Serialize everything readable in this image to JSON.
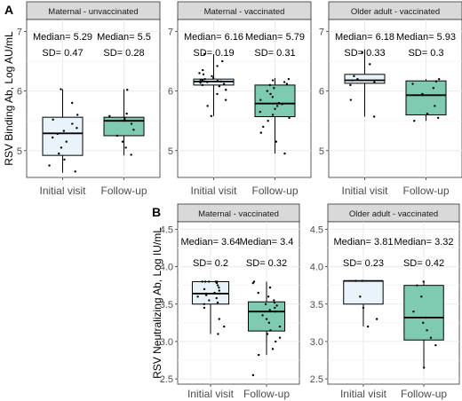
{
  "colors": {
    "initial_fill": "#e8f4fa",
    "followup_fill": "#7ecbb2",
    "strip_fill": "#d9d9d9",
    "grid": "#ebebeb",
    "text": "#333333"
  },
  "chart_data": [
    {
      "type": "box",
      "panel_label": "A",
      "ylabel": "RSV Binding Ab, Log AU/mL",
      "ylim": [
        4.55,
        7.2
      ],
      "yticks": [
        5,
        6,
        7
      ],
      "categories": [
        "Initial visit",
        "Follow-up"
      ],
      "facets": [
        {
          "title": "Maternal - unvaccinated",
          "boxes": [
            {
              "group": "Initial visit",
              "whisker_low": 4.63,
              "q1": 4.92,
              "median": 5.29,
              "q3": 5.56,
              "whisker_high": 6.03,
              "median_label": "Median= 5.29",
              "sd_label": "SD= 0.47",
              "points": [
                4.65,
                4.75,
                4.85,
                4.95,
                5.05,
                5.15,
                5.22,
                5.28,
                5.33,
                5.38,
                5.45,
                5.52,
                5.6,
                5.8,
                6.03
              ]
            },
            {
              "group": "Follow-up",
              "whisker_low": 4.92,
              "q1": 5.25,
              "median": 5.5,
              "q3": 5.56,
              "whisker_high": 6.03,
              "median_label": "Median= 5.5",
              "sd_label": "SD= 0.28",
              "points": [
                4.93,
                5.05,
                5.15,
                5.25,
                5.35,
                5.45,
                5.5,
                5.52,
                5.55,
                5.58,
                5.62,
                6.02
              ]
            }
          ]
        },
        {
          "title": "Maternal - vaccinated",
          "boxes": [
            {
              "group": "Initial visit",
              "whisker_low": 5.58,
              "q1": 6.1,
              "median": 6.16,
              "q3": 6.2,
              "whisker_high": 6.62,
              "median_label": "Median= 6.16",
              "sd_label": "SD= 0.19",
              "points": [
                5.58,
                5.75,
                5.85,
                5.95,
                6.02,
                6.08,
                6.1,
                6.12,
                6.14,
                6.15,
                6.16,
                6.17,
                6.18,
                6.19,
                6.2,
                6.22,
                6.25,
                6.28,
                6.3,
                6.35,
                6.42,
                6.5,
                6.62
              ]
            },
            {
              "group": "Follow-up",
              "whisker_low": 4.95,
              "q1": 5.57,
              "median": 5.79,
              "q3": 6.1,
              "whisker_high": 6.22,
              "median_label": "Median= 5.79",
              "sd_label": "SD= 0.31",
              "points": [
                4.95,
                5.15,
                5.3,
                5.4,
                5.5,
                5.55,
                5.6,
                5.65,
                5.7,
                5.75,
                5.78,
                5.8,
                5.85,
                5.9,
                5.95,
                6.0,
                6.05,
                6.1,
                6.12,
                6.15,
                6.18,
                6.2
              ]
            }
          ]
        },
        {
          "title": "Older adult - vaccinated",
          "boxes": [
            {
              "group": "Initial visit",
              "whisker_low": 5.57,
              "q1": 6.13,
              "median": 6.18,
              "q3": 6.28,
              "whisker_high": 6.7,
              "median_label": "Median= 6.18",
              "sd_label": "SD= 0.33",
              "points": [
                5.57,
                5.85,
                6.1,
                6.15,
                6.18,
                6.2,
                6.25,
                6.45,
                6.65
              ]
            },
            {
              "group": "Follow-up",
              "whisker_low": 5.5,
              "q1": 5.6,
              "median": 5.93,
              "q3": 6.17,
              "whisker_high": 6.2,
              "median_label": "Median= 5.93",
              "sd_label": "SD= 0.3",
              "points": [
                5.5,
                5.55,
                5.62,
                5.75,
                5.95,
                6.05,
                6.12,
                6.16,
                6.2
              ]
            }
          ]
        }
      ]
    },
    {
      "type": "box",
      "panel_label": "B",
      "ylabel": "RSV Neutralizing Ab, Log IU/mL",
      "ylim": [
        2.43,
        4.6
      ],
      "yticks": [
        2.5,
        3.0,
        3.5,
        4.0,
        4.5
      ],
      "ytick_labels": [
        "2.5",
        "3.0",
        "3.5",
        "4.0",
        "4.5"
      ],
      "categories": [
        "Initial visit",
        "Follow-up"
      ],
      "facets": [
        {
          "title": "Maternal - vaccinated",
          "boxes": [
            {
              "group": "Initial visit",
              "whisker_low": 3.1,
              "q1": 3.5,
              "median": 3.64,
              "q3": 3.8,
              "whisker_high": 3.8,
              "median_label": "Median= 3.64",
              "sd_label": "SD= 0.2",
              "points": [
                3.1,
                3.2,
                3.3,
                3.45,
                3.5,
                3.52,
                3.55,
                3.58,
                3.6,
                3.62,
                3.64,
                3.65,
                3.68,
                3.7,
                3.72,
                3.75,
                3.78,
                3.8,
                3.8,
                3.8,
                3.8,
                3.8
              ]
            },
            {
              "group": "Follow-up",
              "whisker_low": 2.82,
              "q1": 3.14,
              "median": 3.4,
              "q3": 3.53,
              "whisker_high": 3.8,
              "median_label": "Median= 3.4",
              "sd_label": "SD= 0.32",
              "points": [
                2.55,
                2.82,
                2.9,
                3.0,
                3.05,
                3.1,
                3.15,
                3.2,
                3.25,
                3.3,
                3.35,
                3.4,
                3.42,
                3.45,
                3.48,
                3.5,
                3.52,
                3.55,
                3.6,
                3.65,
                3.72,
                3.78,
                3.8
              ]
            }
          ]
        },
        {
          "title": "Older adult - vaccinated",
          "boxes": [
            {
              "group": "Initial visit",
              "whisker_low": 3.2,
              "q1": 3.5,
              "median": 3.81,
              "q3": 3.81,
              "whisker_high": 3.81,
              "median_label": "Median= 3.81",
              "sd_label": "SD= 0.23",
              "points": [
                3.2,
                3.3,
                3.45,
                3.6,
                3.81,
                3.81
              ]
            },
            {
              "group": "Follow-up",
              "whisker_low": 2.65,
              "q1": 3.02,
              "median": 3.32,
              "q3": 3.75,
              "whisker_high": 3.81,
              "median_label": "Median= 3.32",
              "sd_label": "SD= 0.42",
              "points": [
                2.65,
                2.95,
                3.05,
                3.15,
                3.25,
                3.32,
                3.4,
                3.6,
                3.75,
                3.8
              ]
            }
          ]
        }
      ]
    }
  ]
}
